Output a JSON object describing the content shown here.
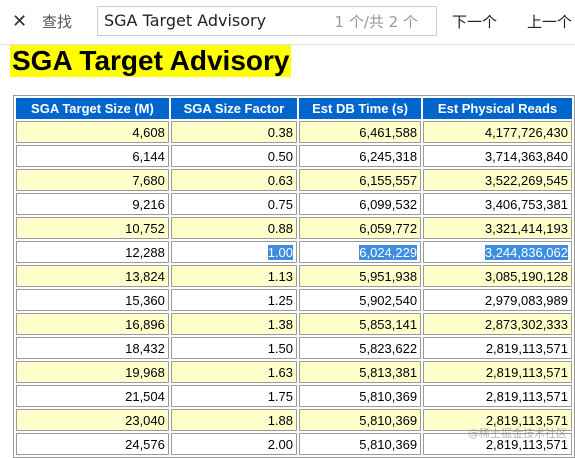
{
  "findbar": {
    "close_icon": "close-icon",
    "label": "查找",
    "query": "SGA Target Advisory",
    "match_count": "1 个/共 2 个",
    "next_label": "下一个",
    "prev_label": "上一个"
  },
  "page": {
    "title": "SGA Target Advisory",
    "title_highlight_color": "#ffff00"
  },
  "table": {
    "header_color": "#0066cc",
    "odd_row_color": "#ffffcc",
    "selection_color": "#3d8fdd",
    "columns": [
      "SGA Target Size (M)",
      "SGA Size Factor",
      "Est DB Time (s)",
      "Est Physical Reads"
    ],
    "rows": [
      [
        "4,608",
        "0.38",
        "6,461,588",
        "4,177,726,430"
      ],
      [
        "6,144",
        "0.50",
        "6,245,318",
        "3,714,363,840"
      ],
      [
        "7,680",
        "0.63",
        "6,155,557",
        "3,522,269,545"
      ],
      [
        "9,216",
        "0.75",
        "6,099,532",
        "3,406,753,381"
      ],
      [
        "10,752",
        "0.88",
        "6,059,772",
        "3,321,414,193"
      ],
      [
        "12,288",
        "1.00",
        "6,024,229",
        "3,244,836,062"
      ],
      [
        "13,824",
        "1.13",
        "5,951,938",
        "3,085,190,128"
      ],
      [
        "15,360",
        "1.25",
        "5,902,540",
        "2,979,083,989"
      ],
      [
        "16,896",
        "1.38",
        "5,853,141",
        "2,873,302,333"
      ],
      [
        "18,432",
        "1.50",
        "5,823,622",
        "2,819,113,571"
      ],
      [
        "19,968",
        "1.63",
        "5,813,381",
        "2,819,113,571"
      ],
      [
        "21,504",
        "1.75",
        "5,810,369",
        "2,819,113,571"
      ],
      [
        "23,040",
        "1.88",
        "5,810,369",
        "2,819,113,571"
      ],
      [
        "24,576",
        "2.00",
        "5,810,369",
        "2,819,113,571"
      ]
    ],
    "selected_row_index": 5
  },
  "watermark": "@稀土掘金技术社区"
}
